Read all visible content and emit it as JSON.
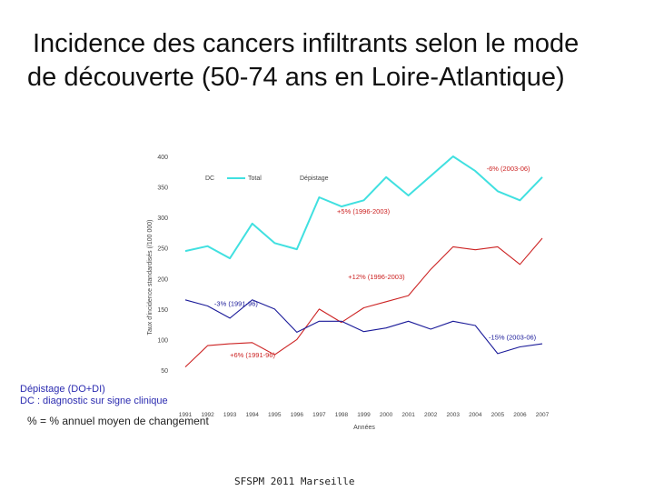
{
  "title_line1": "Incidence des cancers infiltrants selon le mode",
  "title_line2": "de découverte (50-74 ans en Loire-Atlantique)",
  "notes": {
    "depistage": "Dépistage (DO+DI)",
    "dc": "DC :  diagnostic sur signe clinique"
  },
  "pct_note": "% = % annuel moyen de changement",
  "footer": "SFSPM 2011 Marseille",
  "chart_data": {
    "type": "line",
    "ylabel": "Taux d'incidence standardisés (/100 000)",
    "xlabel": "Années",
    "ylim": [
      50,
      400
    ],
    "yticks": [
      50,
      100,
      150,
      200,
      250,
      300,
      350,
      400
    ],
    "x": [
      1991,
      1992,
      1993,
      1994,
      1995,
      1996,
      1997,
      1998,
      1999,
      2000,
      2001,
      2002,
      2003,
      2004,
      2005,
      2006,
      2007
    ],
    "xtick_labels": [
      "1991",
      "1992",
      "1993",
      "1994",
      "1995",
      "1996",
      "1997",
      "1998",
      "1999",
      "2000",
      "2001",
      "2002",
      "2003",
      "2004",
      "2005",
      "2006",
      "2007"
    ],
    "legend": {
      "dc": "DC",
      "total": "Total",
      "depistage": "Dépistage"
    },
    "series": [
      {
        "name": "Total",
        "color": "#40e0e0",
        "values": [
          245,
          253,
          233,
          290,
          258,
          248,
          333,
          318,
          328,
          366,
          336,
          368,
          400,
          376,
          343,
          328,
          366
        ]
      },
      {
        "name": "Dépistage",
        "color": "#cc2222",
        "values": [
          55,
          90,
          93,
          95,
          75,
          100,
          150,
          128,
          152,
          162,
          172,
          215,
          252,
          247,
          252,
          223,
          266
        ]
      },
      {
        "name": "DC",
        "color": "#1a1a99",
        "values": [
          165,
          155,
          135,
          165,
          150,
          112,
          130,
          130,
          113,
          119,
          130,
          117,
          130,
          123,
          77,
          88,
          93
        ]
      }
    ],
    "annotations": [
      {
        "text": "-6% (2003-06)",
        "x": 2004.5,
        "y": 376,
        "color": "#cc2222"
      },
      {
        "text": "+5% (1996-2003)",
        "x": 1997.8,
        "y": 306,
        "color": "#cc2222"
      },
      {
        "text": "+12% (1996-2003)",
        "x": 1998.3,
        "y": 199,
        "color": "#cc2222"
      },
      {
        "text": "-3% (1991-96)",
        "x": 1992.3,
        "y": 155,
        "color": "#1a1a99"
      },
      {
        "text": "-15% (2003-06)",
        "x": 2004.6,
        "y": 100,
        "color": "#1a1a99"
      },
      {
        "text": "+6% (1991-96)",
        "x": 1993.0,
        "y": 71,
        "color": "#cc2222"
      }
    ]
  }
}
